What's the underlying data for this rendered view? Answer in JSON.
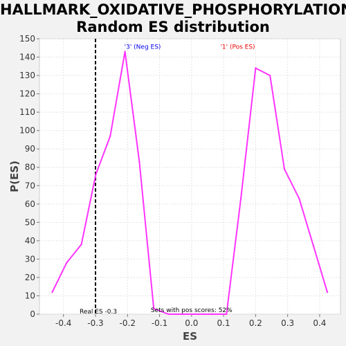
{
  "chart_data": {
    "type": "line",
    "title_line1": "HALLMARK_OXIDATIVE_PHOSPHORYLATION:",
    "title_line2": "Random ES distribution",
    "xlabel": "ES",
    "ylabel": "P(ES)",
    "xlim": [
      -0.475,
      0.465
    ],
    "ylim": [
      0,
      150
    ],
    "xticks": [
      "-0.4",
      "-0.3",
      "-0.2",
      "-0.1",
      "0.0",
      "0.1",
      "0.2",
      "0.3",
      "0.4"
    ],
    "xtick_values": [
      -0.4,
      -0.3,
      -0.2,
      -0.1,
      0.0,
      0.1,
      0.2,
      0.3,
      0.4
    ],
    "yticks": [
      "0",
      "10",
      "20",
      "30",
      "40",
      "50",
      "60",
      "70",
      "80",
      "90",
      "100",
      "110",
      "120",
      "130",
      "140",
      "150"
    ],
    "ytick_values": [
      0,
      10,
      20,
      30,
      40,
      50,
      60,
      70,
      80,
      90,
      100,
      110,
      120,
      130,
      140,
      150
    ],
    "grid": true,
    "series": [
      {
        "color": "#ff33ff",
        "x": [
          -0.435,
          -0.39,
          -0.344,
          -0.299,
          -0.254,
          -0.208,
          -0.163,
          -0.118,
          -0.072,
          -0.027,
          0.019,
          0.064,
          0.109,
          0.154,
          0.2,
          0.245,
          0.29,
          0.336,
          0.381,
          0.424
        ],
        "y": [
          12,
          28,
          38,
          76,
          97,
          143,
          83,
          3,
          0,
          0,
          0,
          0,
          0,
          63,
          134,
          130,
          79,
          63,
          37,
          12
        ]
      }
    ],
    "vline": {
      "x": -0.3,
      "label": "Real ES -0.3",
      "color": "#000000"
    },
    "annotations": {
      "neg": {
        "text": "'3' (Neg ES)",
        "color": "#0000ee",
        "x": -0.21,
        "y": 146
      },
      "pos": {
        "text": "'1' (Pos ES)",
        "color": "#ee0000",
        "x": 0.09,
        "y": 146
      },
      "pos_scores": {
        "text": "Sets with pos scores: 52%",
        "color": "#000000",
        "x": 0.0,
        "y": 0
      }
    }
  }
}
